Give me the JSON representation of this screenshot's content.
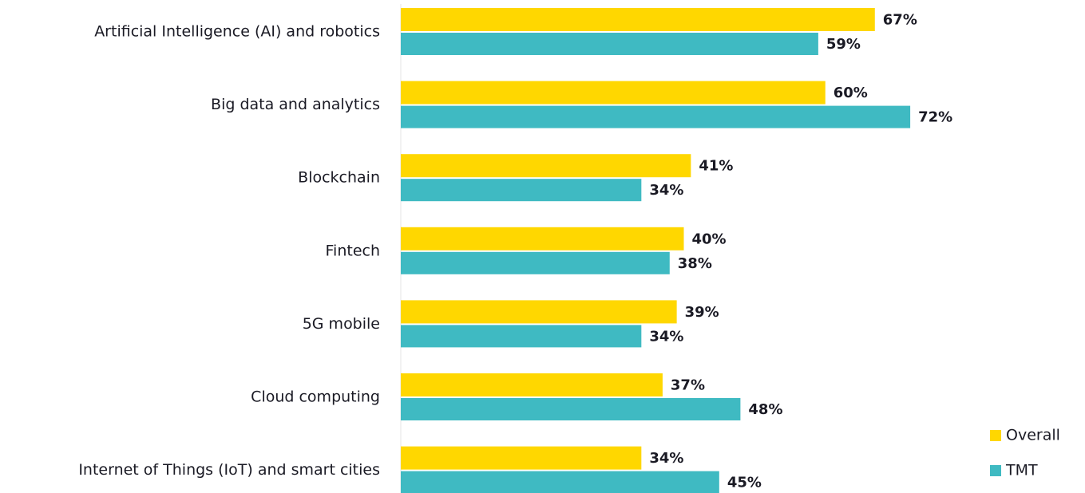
{
  "chart_data": {
    "type": "bar",
    "orientation": "horizontal",
    "categories": [
      "Artificial Intelligence (AI) and robotics",
      "Big data and analytics",
      "Blockchain",
      "Fintech",
      "5G mobile",
      "Cloud computing",
      "Internet of Things (IoT) and smart cities"
    ],
    "series": [
      {
        "name": "Overall",
        "color": "#ffd700",
        "values": [
          67,
          60,
          41,
          40,
          39,
          37,
          34
        ],
        "value_labels": [
          "67%",
          "60%",
          "41%",
          "40%",
          "39%",
          "37%",
          "34%"
        ]
      },
      {
        "name": "TMT",
        "color": "#3fbac2",
        "values": [
          59,
          72,
          34,
          38,
          34,
          48,
          45
        ],
        "value_labels": [
          "59%",
          "72%",
          "34%",
          "38%",
          "34%",
          "48%",
          "45%"
        ]
      }
    ],
    "xlim": [
      0,
      80
    ],
    "legend": "bottom-right"
  }
}
